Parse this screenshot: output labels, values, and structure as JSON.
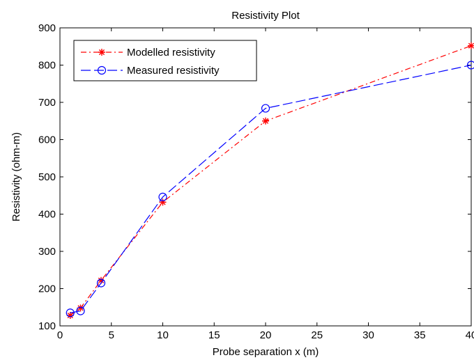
{
  "chart_data": {
    "type": "line",
    "title": "Resistivity Plot",
    "xlabel": "Probe separation x (m)",
    "ylabel": "Resistivity (ohm-m)",
    "xlim": [
      0,
      40
    ],
    "ylim": [
      100,
      900
    ],
    "xticks": [
      "0",
      "5",
      "10",
      "15",
      "20",
      "25",
      "30",
      "35",
      "40"
    ],
    "yticks": [
      "100",
      "200",
      "300",
      "400",
      "500",
      "600",
      "700",
      "800",
      "900"
    ],
    "grid": false,
    "legend_position": "top-left",
    "series": [
      {
        "name": "Modelled resistivity",
        "color": "#ff0000",
        "line_style": "dash-dot",
        "marker": "asterisk",
        "x": [
          1,
          2,
          4,
          10,
          20,
          40
        ],
        "y": [
          128,
          148,
          222,
          432,
          650,
          852
        ]
      },
      {
        "name": "Measured resistivity",
        "color": "#0000ff",
        "line_style": "long-dash",
        "marker": "circle",
        "x": [
          1,
          2,
          4,
          10,
          20,
          40
        ],
        "y": [
          135,
          140,
          215,
          446,
          684,
          800
        ]
      }
    ]
  }
}
